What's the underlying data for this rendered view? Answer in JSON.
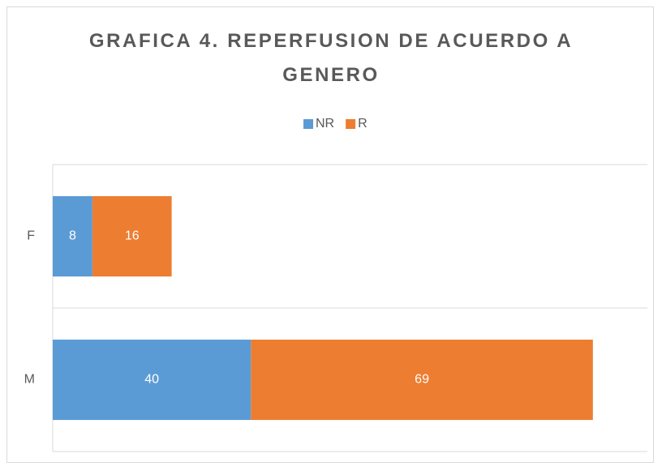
{
  "chart_data": {
    "type": "bar",
    "orientation": "horizontal",
    "stacked": true,
    "title": "GRAFICA 4. REPERFUSION DE ACUERDO A GENERO",
    "categories": [
      "F",
      "M"
    ],
    "series": [
      {
        "name": "NR",
        "color": "#5b9bd5",
        "values": [
          8,
          40
        ]
      },
      {
        "name": "R",
        "color": "#ed7d31",
        "values": [
          16,
          69
        ]
      }
    ],
    "xlim": [
      0,
      120
    ],
    "legend": "top"
  }
}
